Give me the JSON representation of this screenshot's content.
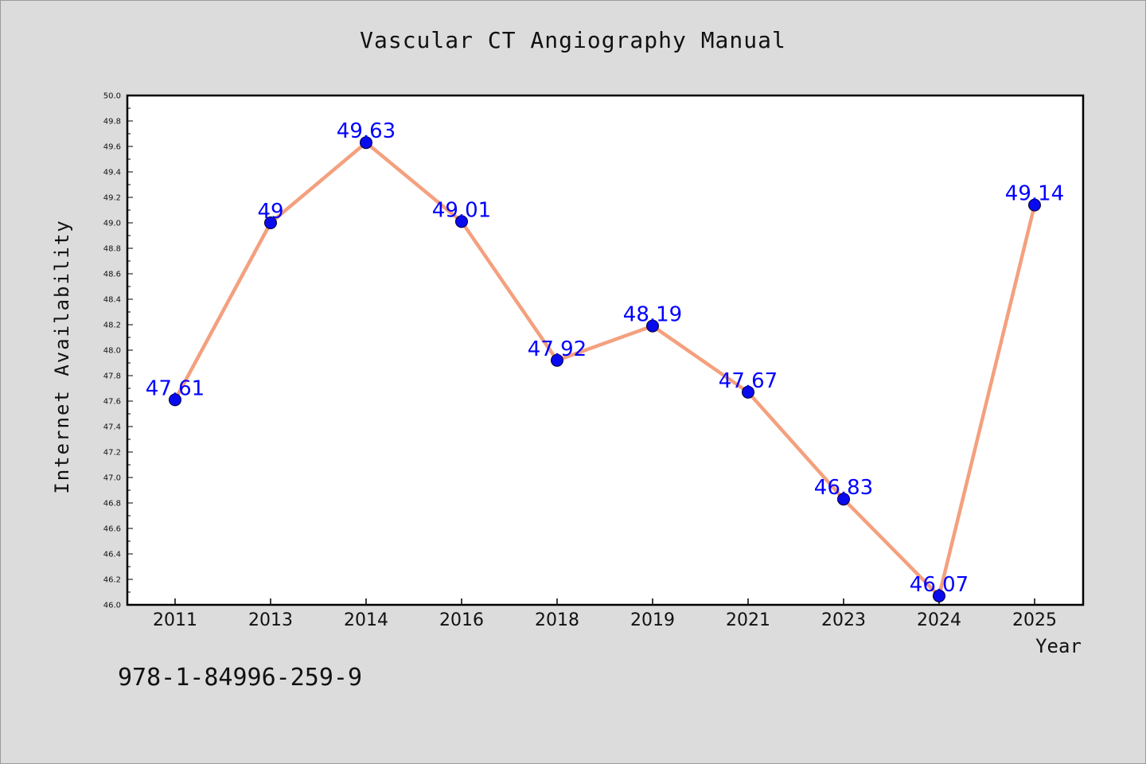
{
  "title": "Vascular CT Angiography Manual",
  "footer_code": "978-1-84996-259-9",
  "colors": {
    "background": "#dcdcdc",
    "plot_background": "#ffffff",
    "line": "#f4a07e",
    "marker": "#0a0aee",
    "label": "#0000ff"
  },
  "chart_data": {
    "type": "line",
    "title": "Vascular CT Angiography Manual",
    "xlabel": "Year",
    "ylabel": "Internet Availability",
    "categories": [
      "2011",
      "2013",
      "2014",
      "2016",
      "2018",
      "2019",
      "2021",
      "2023",
      "2024",
      "2025"
    ],
    "series": [
      {
        "values": [
          47.61,
          49,
          49.63,
          49.01,
          47.92,
          48.19,
          47.67,
          46.83,
          46.07,
          49.14
        ],
        "labels": [
          "47.61",
          "49",
          "49.63",
          "49.01",
          "47.92",
          "48.19",
          "47.67",
          "46.83",
          "46.07",
          "49.14"
        ]
      }
    ],
    "ylim": [
      46.0,
      50.0
    ],
    "yticks": [
      "46.0",
      "46.2",
      "46.4",
      "46.6",
      "46.8",
      "47.0",
      "47.2",
      "47.4",
      "47.6",
      "47.8",
      "48.0",
      "48.2",
      "48.4",
      "48.6",
      "48.8",
      "49.0",
      "49.2",
      "49.4",
      "49.6",
      "49.8",
      "50.0"
    ],
    "grid": false,
    "legend": "none"
  }
}
